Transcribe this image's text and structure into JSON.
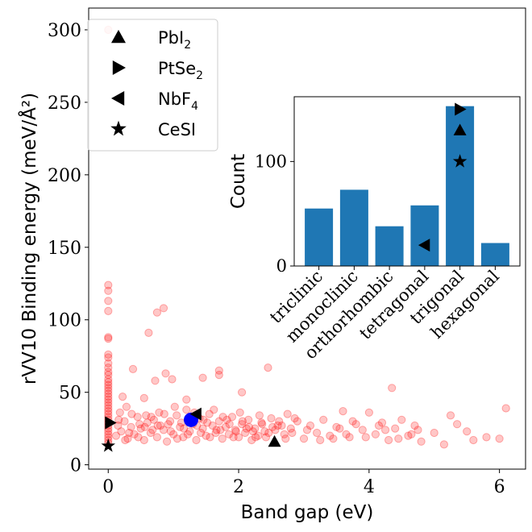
{
  "chart_data": [
    {
      "type": "scatter",
      "xlabel": "Band gap (eV)",
      "ylabel": "rVV10 Binding energy (meV/Å²)",
      "xlim": [
        -0.3,
        6.4
      ],
      "ylim": [
        -3,
        315
      ],
      "xticks": [
        0,
        2,
        4,
        6
      ],
      "yticks": [
        0,
        50,
        100,
        150,
        200,
        250,
        300
      ],
      "point_color": "#ff0000",
      "highlight_color": "#0000ff",
      "highlight_point": [
        1.27,
        31
      ],
      "legend": {
        "position": "top-left",
        "entries": [
          {
            "marker": "triangle-up",
            "label": "PbI",
            "sub": "2"
          },
          {
            "marker": "triangle-right",
            "label": "PtSe",
            "sub": "2"
          },
          {
            "marker": "triangle-left",
            "label": "NbF",
            "sub": "4"
          },
          {
            "marker": "star",
            "label": "CeSI",
            "sub": ""
          }
        ]
      },
      "special_points": [
        {
          "marker": "triangle-up",
          "x": 2.55,
          "y": 16
        },
        {
          "marker": "triangle-right",
          "x": 0.03,
          "y": 29
        },
        {
          "marker": "triangle-left",
          "x": 1.35,
          "y": 35
        },
        {
          "marker": "star",
          "x": 0.0,
          "y": 13
        }
      ],
      "points": [
        [
          0,
          300
        ],
        [
          0,
          124
        ],
        [
          0,
          120
        ],
        [
          0,
          113
        ],
        [
          0,
          106
        ],
        [
          0,
          88
        ],
        [
          0,
          87
        ],
        [
          0,
          76
        ],
        [
          0,
          74
        ],
        [
          0,
          70
        ],
        [
          0,
          67
        ],
        [
          0,
          64
        ],
        [
          0,
          62
        ],
        [
          0,
          59
        ],
        [
          0,
          57
        ],
        [
          0,
          55
        ],
        [
          0,
          53
        ],
        [
          0,
          51
        ],
        [
          0,
          49
        ],
        [
          0,
          47
        ],
        [
          0,
          45
        ],
        [
          0,
          43
        ],
        [
          0,
          41
        ],
        [
          0,
          39
        ],
        [
          0,
          37
        ],
        [
          0,
          35
        ],
        [
          0,
          33
        ],
        [
          0,
          31
        ],
        [
          0,
          29
        ],
        [
          0,
          27
        ],
        [
          0,
          25
        ],
        [
          0,
          23
        ],
        [
          0,
          21
        ],
        [
          0,
          19
        ],
        [
          0,
          17
        ],
        [
          0,
          15
        ],
        [
          0.22,
          47
        ],
        [
          0.28,
          40
        ],
        [
          0.38,
          66
        ],
        [
          0.55,
          46
        ],
        [
          0.62,
          91
        ],
        [
          0.75,
          105
        ],
        [
          0.85,
          108
        ],
        [
          0.72,
          58
        ],
        [
          0.88,
          63
        ],
        [
          0.98,
          59
        ],
        [
          1.2,
          45
        ],
        [
          1.45,
          60
        ],
        [
          1.7,
          65
        ],
        [
          1.7,
          62
        ],
        [
          2.05,
          50
        ],
        [
          2.45,
          67
        ],
        [
          4.35,
          53
        ],
        [
          4.0,
          36
        ],
        [
          5.25,
          34
        ],
        [
          6.1,
          39
        ],
        [
          0.15,
          27
        ],
        [
          0.2,
          23
        ],
        [
          0.25,
          30
        ],
        [
          0.3,
          18
        ],
        [
          0.35,
          26
        ],
        [
          0.4,
          21
        ],
        [
          0.45,
          33
        ],
        [
          0.5,
          25
        ],
        [
          0.55,
          17
        ],
        [
          0.6,
          29
        ],
        [
          0.65,
          22
        ],
        [
          0.7,
          31
        ],
        [
          0.75,
          19
        ],
        [
          0.8,
          27
        ],
        [
          0.85,
          24
        ],
        [
          0.9,
          16
        ],
        [
          0.95,
          30
        ],
        [
          1.0,
          21
        ],
        [
          1.05,
          34
        ],
        [
          1.1,
          26
        ],
        [
          1.15,
          19
        ],
        [
          1.2,
          38
        ],
        [
          1.25,
          23
        ],
        [
          1.3,
          28
        ],
        [
          1.35,
          17
        ],
        [
          1.4,
          32
        ],
        [
          1.45,
          25
        ],
        [
          1.5,
          20
        ],
        [
          1.55,
          35
        ],
        [
          1.6,
          27
        ],
        [
          1.65,
          22
        ],
        [
          1.7,
          30
        ],
        [
          1.75,
          18
        ],
        [
          1.8,
          26
        ],
        [
          1.85,
          21
        ],
        [
          1.9,
          33
        ],
        [
          1.95,
          24
        ],
        [
          2.0,
          19
        ],
        [
          2.05,
          28
        ],
        [
          2.1,
          22
        ],
        [
          2.15,
          31
        ],
        [
          2.2,
          17
        ],
        [
          2.25,
          25
        ],
        [
          2.3,
          20
        ],
        [
          2.35,
          29
        ],
        [
          2.4,
          23
        ],
        [
          2.5,
          32
        ],
        [
          2.6,
          27
        ],
        [
          2.7,
          21
        ],
        [
          2.75,
          35
        ],
        [
          2.8,
          25
        ],
        [
          2.9,
          30
        ],
        [
          3.0,
          18
        ],
        [
          3.1,
          27
        ],
        [
          3.2,
          22
        ],
        [
          3.3,
          31
        ],
        [
          3.4,
          20
        ],
        [
          3.5,
          26
        ],
        [
          3.6,
          37
        ],
        [
          3.7,
          19
        ],
        [
          3.8,
          28
        ],
        [
          3.9,
          24
        ],
        [
          4.1,
          21
        ],
        [
          4.2,
          29
        ],
        [
          4.3,
          17
        ],
        [
          4.4,
          25
        ],
        [
          4.5,
          31
        ],
        [
          4.6,
          20
        ],
        [
          4.7,
          27
        ],
        [
          4.8,
          16
        ],
        [
          5.0,
          22
        ],
        [
          5.15,
          14
        ],
        [
          5.5,
          23
        ],
        [
          5.6,
          17
        ],
        [
          5.8,
          19
        ],
        [
          6.0,
          18
        ],
        [
          0.18,
          36
        ],
        [
          0.32,
          22
        ],
        [
          0.48,
          28
        ],
        [
          0.58,
          34
        ],
        [
          0.68,
          24
        ],
        [
          0.78,
          36
        ],
        [
          0.92,
          28
        ],
        [
          1.02,
          40
        ],
        [
          1.12,
          29
        ],
        [
          1.22,
          21
        ],
        [
          1.32,
          36
        ],
        [
          1.42,
          22
        ],
        [
          1.52,
          29
        ],
        [
          1.62,
          38
        ],
        [
          1.72,
          24
        ],
        [
          1.82,
          31
        ],
        [
          1.92,
          19
        ],
        [
          2.02,
          36
        ],
        [
          2.12,
          25
        ],
        [
          2.22,
          23
        ],
        [
          2.32,
          34
        ],
        [
          2.42,
          19
        ],
        [
          2.52,
          26
        ],
        [
          2.62,
          30
        ],
        [
          2.72,
          18
        ],
        [
          2.82,
          22
        ],
        [
          3.45,
          18
        ],
        [
          3.65,
          21
        ],
        [
          4.25,
          24
        ],
        [
          4.65,
          21
        ],
        [
          5.35,
          28
        ],
        [
          0.12,
          20
        ],
        [
          0.16,
          31
        ],
        [
          0.26,
          17
        ],
        [
          0.36,
          35
        ],
        [
          0.46,
          19
        ],
        [
          0.56,
          26
        ],
        [
          0.66,
          33
        ],
        [
          0.76,
          27
        ],
        [
          0.86,
          35
        ],
        [
          0.96,
          23
        ],
        [
          1.06,
          18
        ],
        [
          1.16,
          25
        ],
        [
          1.36,
          27
        ],
        [
          1.46,
          31
        ],
        [
          1.56,
          19
        ],
        [
          1.66,
          24
        ],
        [
          1.76,
          33
        ],
        [
          1.86,
          28
        ],
        [
          1.96,
          23
        ],
        [
          2.06,
          30
        ],
        [
          2.16,
          26
        ],
        [
          2.26,
          19
        ],
        [
          2.36,
          28
        ],
        [
          2.46,
          22
        ],
        [
          2.56,
          24
        ],
        [
          2.66,
          27
        ],
        [
          2.86,
          32
        ],
        [
          3.05,
          24
        ],
        [
          3.25,
          17
        ],
        [
          3.55,
          25
        ],
        [
          3.75,
          30
        ],
        [
          3.95,
          19
        ],
        [
          4.15,
          27
        ],
        [
          4.45,
          18
        ],
        [
          4.75,
          24
        ]
      ]
    },
    {
      "type": "bar",
      "ylabel": "Count",
      "categories": [
        "triclinic",
        "monoclinic",
        "orthorhombic",
        "tetragonal",
        "trigonal",
        "hexagonal"
      ],
      "values": [
        55,
        73,
        38,
        58,
        153,
        22
      ],
      "ylim": [
        0,
        162
      ],
      "yticks": [
        0,
        100
      ],
      "bar_color": "#1f77b4",
      "markers": [
        {
          "marker": "triangle-right",
          "category_index": 4,
          "y": 150
        },
        {
          "marker": "triangle-up",
          "category_index": 4,
          "y": 130
        },
        {
          "marker": "star",
          "category_index": 4,
          "y": 100
        },
        {
          "marker": "triangle-left",
          "category_index": 3,
          "y": 20
        }
      ]
    }
  ]
}
